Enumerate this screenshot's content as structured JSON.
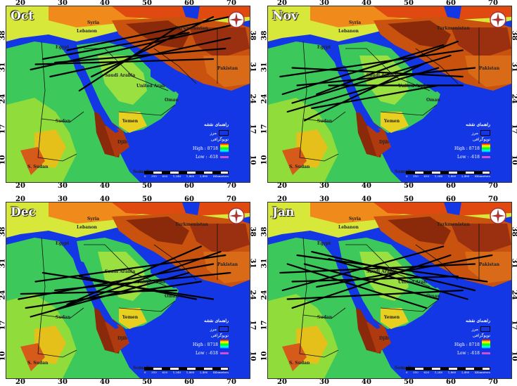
{
  "legend": {
    "title": "راهنمای نقشه",
    "border": "مرز",
    "topo": "توپوگرافی",
    "high": "High : 8718",
    "low": "Low : -618"
  },
  "scale": {
    "labels": [
      "0",
      "310",
      "620",
      "1,240",
      "1,860",
      "2,480"
    ],
    "unit": "Kilometers"
  },
  "axes": {
    "x": [
      "20",
      "30",
      "40",
      "50",
      "60",
      "70"
    ],
    "y": [
      "38",
      "31",
      "24",
      "17",
      "10"
    ]
  },
  "place_labels": {
    "egypt": "Egypt",
    "saudi": "Saudi Arabia",
    "uae": "United Arab",
    "sudan": "Sudan",
    "ssudan": "S. Sudan",
    "yemen": "Yemen",
    "syria": "Syria",
    "lebanon": "Lebanon",
    "oman": "Oman",
    "turkmenistan": "Turkmenistan",
    "pakistan": "Pakistan",
    "somalia": "Somalia",
    "djibouti": "Djib"
  },
  "panels": [
    {
      "month": "Oct",
      "tracks": [
        [
          0.1,
          0.36,
          0.95,
          0.1
        ],
        [
          0.18,
          0.4,
          0.92,
          0.18
        ],
        [
          0.25,
          0.25,
          0.95,
          0.05
        ],
        [
          0.3,
          0.48,
          0.7,
          0.12
        ],
        [
          0.12,
          0.33,
          0.85,
          0.3
        ],
        [
          0.2,
          0.32,
          0.9,
          0.24
        ],
        [
          0.35,
          0.4,
          0.85,
          0.06
        ],
        [
          0.15,
          0.3,
          0.75,
          0.15
        ]
      ]
    },
    {
      "month": "Nov",
      "tracks": [
        [
          0.05,
          0.4,
          0.8,
          0.25
        ],
        [
          0.1,
          0.55,
          0.75,
          0.28
        ],
        [
          0.12,
          0.45,
          0.85,
          0.35
        ],
        [
          0.08,
          0.6,
          0.7,
          0.35
        ],
        [
          0.2,
          0.5,
          0.78,
          0.2
        ],
        [
          0.1,
          0.35,
          0.8,
          0.4
        ],
        [
          0.15,
          0.65,
          0.65,
          0.32
        ],
        [
          0.25,
          0.45,
          0.8,
          0.45
        ],
        [
          0.06,
          0.5,
          0.72,
          0.22
        ],
        [
          0.18,
          0.58,
          0.7,
          0.45
        ]
      ]
    },
    {
      "month": "Dec",
      "tracks": [
        [
          0.05,
          0.55,
          0.85,
          0.35
        ],
        [
          0.08,
          0.6,
          0.8,
          0.45
        ],
        [
          0.12,
          0.45,
          0.9,
          0.3
        ],
        [
          0.1,
          0.65,
          0.75,
          0.4
        ],
        [
          0.2,
          0.5,
          0.92,
          0.4
        ],
        [
          0.15,
          0.4,
          0.85,
          0.55
        ],
        [
          0.25,
          0.58,
          0.8,
          0.25
        ],
        [
          0.06,
          0.52,
          0.7,
          0.5
        ],
        [
          0.18,
          0.62,
          0.88,
          0.28
        ],
        [
          0.3,
          0.42,
          0.78,
          0.55
        ]
      ]
    },
    {
      "month": "Jan",
      "tracks": [
        [
          0.05,
          0.4,
          0.85,
          0.35
        ],
        [
          0.08,
          0.55,
          0.8,
          0.5
        ],
        [
          0.12,
          0.3,
          0.9,
          0.45
        ],
        [
          0.1,
          0.6,
          0.75,
          0.3
        ],
        [
          0.15,
          0.35,
          0.7,
          0.55
        ],
        [
          0.2,
          0.48,
          0.92,
          0.3
        ],
        [
          0.06,
          0.5,
          0.72,
          0.25
        ],
        [
          0.25,
          0.32,
          0.82,
          0.55
        ],
        [
          0.1,
          0.45,
          0.78,
          0.42
        ],
        [
          0.18,
          0.28,
          0.85,
          0.5
        ],
        [
          0.08,
          0.35,
          0.65,
          0.6
        ]
      ]
    }
  ]
}
